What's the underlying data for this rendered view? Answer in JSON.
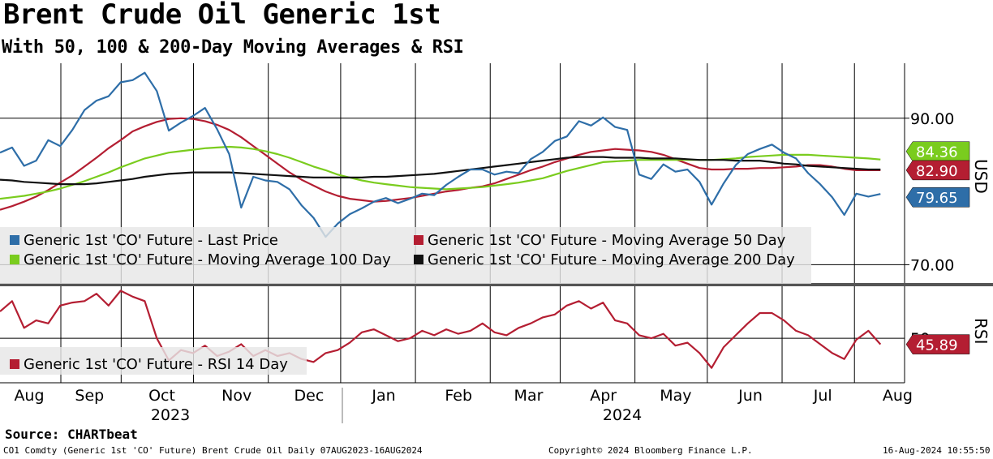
{
  "header": {
    "title": "Brent Crude Oil Generic 1st",
    "subtitle": "With 50, 100 & 200-Day Moving Averages & RSI"
  },
  "footer": {
    "source": "Source: CHARTbeat",
    "security": "CO1 Comdty (Generic 1st 'CO' Future) Brent Crude Oil  Daily 07AUG2023-16AUG2024",
    "copyright": "Copyright© 2024 Bloomberg Finance L.P.",
    "timestamp": "16-Aug-2024 10:55:50"
  },
  "colors": {
    "price": "#2e6ea8",
    "ma50": "#b41e32",
    "ma100": "#7acc1e",
    "ma200": "#111111",
    "rsi": "#b41e32"
  },
  "chart_data": [
    {
      "type": "line",
      "panel": "price",
      "axis_label": "USD",
      "ylim": [
        67.5,
        97.5
      ],
      "y_ticks": [
        70,
        90
      ],
      "y_tick_labels": [
        "70.00",
        "90.00"
      ],
      "x_start_day": 0,
      "x_step_days": 5,
      "series": [
        {
          "name": "Generic 1st 'CO' Future - Last Price",
          "color": "#2e6ea8",
          "last_label": "79.65",
          "values": [
            85.3,
            86.0,
            83.5,
            84.2,
            87.0,
            86.2,
            88.4,
            91.1,
            92.4,
            93.0,
            94.9,
            95.2,
            96.2,
            93.7,
            88.3,
            89.4,
            90.3,
            91.4,
            88.5,
            85.1,
            77.8,
            82.0,
            81.5,
            81.3,
            80.3,
            78.1,
            76.4,
            73.8,
            75.6,
            76.9,
            77.7,
            78.6,
            79.1,
            78.4,
            79.0,
            79.7,
            79.5,
            80.9,
            82.0,
            83.0,
            83.0,
            82.3,
            82.7,
            82.5,
            84.4,
            85.4,
            86.9,
            87.5,
            89.6,
            89.0,
            90.1,
            88.8,
            88.4,
            82.3,
            81.7,
            83.7,
            82.7,
            83.0,
            81.3,
            78.2,
            81.1,
            83.6,
            85.1,
            85.8,
            86.4,
            85.3,
            84.5,
            82.5,
            81.0,
            79.2,
            76.8,
            79.7,
            79.3,
            79.65
          ]
        },
        {
          "name": "Generic 1st 'CO' Future - Moving Average 50 Day",
          "color": "#b41e32",
          "last_label": "82.90",
          "values": [
            77.5,
            78.0,
            78.6,
            79.3,
            80.2,
            81.2,
            82.2,
            83.4,
            84.6,
            85.9,
            87.0,
            88.2,
            88.9,
            89.5,
            89.9,
            90.0,
            89.9,
            89.6,
            89.1,
            88.4,
            87.4,
            86.2,
            85.0,
            83.8,
            82.6,
            81.6,
            80.8,
            80.0,
            79.4,
            79.0,
            78.8,
            78.6,
            78.7,
            78.9,
            79.1,
            79.4,
            79.7,
            80.0,
            80.2,
            80.5,
            80.7,
            81.1,
            81.7,
            82.3,
            82.9,
            83.4,
            84.0,
            84.5,
            85.0,
            85.4,
            85.6,
            85.8,
            85.7,
            85.6,
            85.4,
            85.0,
            84.4,
            83.8,
            83.2,
            83.0,
            83.0,
            83.1,
            83.1,
            83.2,
            83.2,
            83.3,
            83.4,
            83.6,
            83.6,
            83.4,
            83.1,
            82.9,
            82.9,
            82.9
          ]
        },
        {
          "name": "Generic 1st 'CO' Future - Moving Average 100 Day",
          "color": "#7acc1e",
          "last_label": "84.36",
          "values": [
            79.0,
            79.2,
            79.4,
            79.7,
            80.0,
            80.4,
            80.9,
            81.4,
            82.0,
            82.6,
            83.3,
            83.9,
            84.5,
            84.9,
            85.3,
            85.5,
            85.7,
            85.9,
            86.0,
            86.1,
            86.0,
            85.8,
            85.5,
            85.1,
            84.6,
            84.0,
            83.4,
            82.9,
            82.3,
            81.9,
            81.5,
            81.2,
            81.0,
            80.8,
            80.6,
            80.5,
            80.4,
            80.3,
            80.4,
            80.5,
            80.6,
            80.8,
            81.0,
            81.2,
            81.5,
            81.8,
            82.3,
            82.8,
            83.2,
            83.6,
            84.0,
            84.1,
            84.2,
            84.3,
            84.3,
            84.3,
            84.3,
            84.3,
            84.3,
            84.3,
            84.4,
            84.5,
            84.7,
            84.8,
            84.9,
            85.0,
            85.0,
            85.0,
            84.9,
            84.8,
            84.7,
            84.6,
            84.5,
            84.36
          ]
        },
        {
          "name": "Generic 1st 'CO' Future - Moving Average 200 Day",
          "color": "#111111",
          "last_label": "",
          "values": [
            81.6,
            81.5,
            81.3,
            81.2,
            81.1,
            81.0,
            81.0,
            81.0,
            81.1,
            81.3,
            81.5,
            81.7,
            82.0,
            82.2,
            82.4,
            82.5,
            82.6,
            82.6,
            82.6,
            82.6,
            82.5,
            82.4,
            82.3,
            82.2,
            82.1,
            82.0,
            81.9,
            81.9,
            81.9,
            81.9,
            81.9,
            82.0,
            82.0,
            82.1,
            82.2,
            82.3,
            82.4,
            82.6,
            82.8,
            83.0,
            83.2,
            83.4,
            83.6,
            83.8,
            84.0,
            84.2,
            84.4,
            84.6,
            84.7,
            84.7,
            84.7,
            84.6,
            84.6,
            84.6,
            84.5,
            84.5,
            84.5,
            84.4,
            84.3,
            84.3,
            84.3,
            84.2,
            84.2,
            84.2,
            84.0,
            83.8,
            83.7,
            83.5,
            83.4,
            83.3,
            83.2,
            83.1,
            83.0,
            83.0
          ]
        }
      ]
    },
    {
      "type": "line",
      "panel": "rsi",
      "axis_label": "RSI",
      "ylim": [
        20,
        85
      ],
      "y_ticks": [
        50
      ],
      "y_tick_labels": [
        "50"
      ],
      "x_start_day": 0,
      "x_step_days": 5,
      "series": [
        {
          "name": "Generic 1st 'CO' Future - RSI 14 Day",
          "color": "#b41e32",
          "last_label": "45.89",
          "values": [
            68,
            75,
            57,
            62,
            60,
            72,
            74,
            75,
            80,
            72,
            82,
            78,
            75,
            50,
            35,
            42,
            40,
            45,
            38,
            41,
            46,
            38,
            42,
            38,
            40,
            36,
            34,
            40,
            42,
            47,
            54,
            56,
            52,
            48,
            50,
            55,
            52,
            56,
            53,
            55,
            60,
            54,
            52,
            57,
            60,
            64,
            66,
            72,
            75,
            70,
            74,
            62,
            60,
            52,
            50,
            53,
            45,
            47,
            40,
            30,
            44,
            52,
            60,
            67,
            67,
            62,
            55,
            52,
            46,
            40,
            36,
            49,
            55,
            45.89
          ]
        }
      ]
    },
    {
      "type": "axis",
      "months": [
        "Aug",
        "Sep",
        "Oct",
        "Nov",
        "Dec",
        "Jan",
        "Feb",
        "Mar",
        "Apr",
        "May",
        "Jun",
        "Jul",
        "Aug"
      ],
      "years": [
        "2023",
        "2024"
      ]
    }
  ]
}
